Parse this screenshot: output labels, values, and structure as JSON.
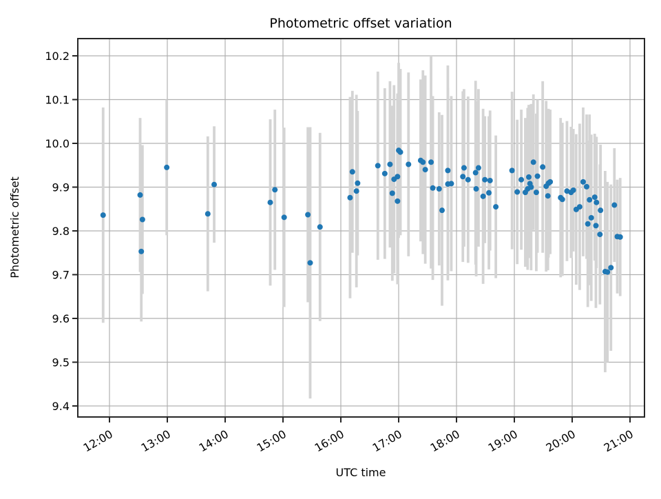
{
  "title": "Photometric offset variation",
  "chart_data": {
    "type": "scatter",
    "title": "Photometric offset variation",
    "xlabel": "UTC time",
    "ylabel": "Photometric offset",
    "grid": true,
    "legend": "none",
    "marker_color": "#1f77b4",
    "errorbar_color": "#d4d4d4",
    "grid_color": "#b0b0b0",
    "spine_color": "#262626",
    "ylim": [
      9.375,
      10.24
    ],
    "y_ticks": [
      "9.4",
      "9.5",
      "9.6",
      "9.7",
      "9.8",
      "9.9",
      "10.0",
      "10.1",
      "10.2"
    ],
    "x_ticks": [
      "12:00",
      "13:00",
      "14:00",
      "15:00",
      "16:00",
      "17:00",
      "18:00",
      "19:00",
      "20:00",
      "21:00"
    ],
    "x_tick_hours": [
      12,
      13,
      14,
      15,
      16,
      17,
      18,
      19,
      20,
      21
    ],
    "points": [
      {
        "time": "11:53",
        "hour": 11.89,
        "offset": 9.836,
        "err": 0.246
      },
      {
        "time": "12:32",
        "hour": 12.53,
        "offset": 9.882,
        "err": 0.176
      },
      {
        "time": "12:33",
        "hour": 12.55,
        "offset": 9.753,
        "err": 0.16
      },
      {
        "time": "12:34",
        "hour": 12.57,
        "offset": 9.826,
        "err": 0.17
      },
      {
        "time": "12:59",
        "hour": 12.99,
        "offset": 9.945,
        "err": 0.155
      },
      {
        "time": "13:42",
        "hour": 13.7,
        "offset": 9.839,
        "err": 0.177
      },
      {
        "time": "13:49",
        "hour": 13.81,
        "offset": 9.906,
        "err": 0.133
      },
      {
        "time": "14:47",
        "hour": 14.78,
        "offset": 9.865,
        "err": 0.19
      },
      {
        "time": "14:52",
        "hour": 14.86,
        "offset": 9.894,
        "err": 0.183
      },
      {
        "time": "15:01",
        "hour": 15.02,
        "offset": 9.831,
        "err": 0.205
      },
      {
        "time": "15:26",
        "hour": 15.43,
        "offset": 9.837,
        "err": 0.2
      },
      {
        "time": "15:28",
        "hour": 15.47,
        "offset": 9.727,
        "err": 0.31
      },
      {
        "time": "15:38",
        "hour": 15.64,
        "offset": 9.809,
        "err": 0.215
      },
      {
        "time": "16:10",
        "hour": 16.16,
        "offset": 9.876,
        "err": 0.23
      },
      {
        "time": "16:12",
        "hour": 16.2,
        "offset": 9.935,
        "err": 0.185
      },
      {
        "time": "16:16",
        "hour": 16.27,
        "offset": 9.891,
        "err": 0.22
      },
      {
        "time": "16:17",
        "hour": 16.29,
        "offset": 9.909,
        "err": 0.165
      },
      {
        "time": "16:38",
        "hour": 16.64,
        "offset": 9.949,
        "err": 0.215
      },
      {
        "time": "16:46",
        "hour": 16.76,
        "offset": 9.931,
        "err": 0.195
      },
      {
        "time": "16:51",
        "hour": 16.85,
        "offset": 9.952,
        "err": 0.19
      },
      {
        "time": "16:53",
        "hour": 16.89,
        "offset": 9.886,
        "err": 0.2
      },
      {
        "time": "16:55",
        "hour": 16.92,
        "offset": 9.918,
        "err": 0.215
      },
      {
        "time": "16:59",
        "hour": 16.98,
        "offset": 9.924,
        "err": 0.19
      },
      {
        "time": "16:59",
        "hour": 16.98,
        "offset": 9.868,
        "err": 0.19
      },
      {
        "time": "17:00",
        "hour": 17.0,
        "offset": 9.984,
        "err": 0.2
      },
      {
        "time": "17:02",
        "hour": 17.03,
        "offset": 9.98,
        "err": 0.19
      },
      {
        "time": "17:10",
        "hour": 17.17,
        "offset": 9.952,
        "err": 0.21
      },
      {
        "time": "17:23",
        "hour": 17.38,
        "offset": 9.961,
        "err": 0.185
      },
      {
        "time": "17:25",
        "hour": 17.42,
        "offset": 9.957,
        "err": 0.21
      },
      {
        "time": "17:28",
        "hour": 17.46,
        "offset": 9.94,
        "err": 0.215
      },
      {
        "time": "17:34",
        "hour": 17.56,
        "offset": 9.957,
        "err": 0.243
      },
      {
        "time": "17:35",
        "hour": 17.59,
        "offset": 9.898,
        "err": 0.21
      },
      {
        "time": "17:42",
        "hour": 17.7,
        "offset": 9.896,
        "err": 0.175
      },
      {
        "time": "17:45",
        "hour": 17.75,
        "offset": 9.847,
        "err": 0.218
      },
      {
        "time": "17:51",
        "hour": 17.85,
        "offset": 9.938,
        "err": 0.24
      },
      {
        "time": "17:51",
        "hour": 17.85,
        "offset": 9.907,
        "err": 0.22
      },
      {
        "time": "17:55",
        "hour": 17.91,
        "offset": 9.908,
        "err": 0.2
      },
      {
        "time": "18:07",
        "hour": 18.11,
        "offset": 9.924,
        "err": 0.195
      },
      {
        "time": "18:08",
        "hour": 18.13,
        "offset": 9.944,
        "err": 0.18
      },
      {
        "time": "18:12",
        "hour": 18.2,
        "offset": 9.917,
        "err": 0.19
      },
      {
        "time": "18:20",
        "hour": 18.33,
        "offset": 9.933,
        "err": 0.21
      },
      {
        "time": "18:20",
        "hour": 18.34,
        "offset": 9.896,
        "err": 0.2
      },
      {
        "time": "18:23",
        "hour": 18.38,
        "offset": 9.944,
        "err": 0.18
      },
      {
        "time": "18:28",
        "hour": 18.46,
        "offset": 9.879,
        "err": 0.2
      },
      {
        "time": "18:29",
        "hour": 18.49,
        "offset": 9.917,
        "err": 0.145
      },
      {
        "time": "18:34",
        "hour": 18.56,
        "offset": 9.887,
        "err": 0.175
      },
      {
        "time": "18:35",
        "hour": 18.58,
        "offset": 9.915,
        "err": 0.16
      },
      {
        "time": "18:41",
        "hour": 18.68,
        "offset": 9.855,
        "err": 0.163
      },
      {
        "time": "18:58",
        "hour": 18.96,
        "offset": 9.938,
        "err": 0.18
      },
      {
        "time": "19:03",
        "hour": 19.05,
        "offset": 9.889,
        "err": 0.165
      },
      {
        "time": "19:07",
        "hour": 19.12,
        "offset": 9.917,
        "err": 0.16
      },
      {
        "time": "19:11",
        "hour": 19.19,
        "offset": 9.888,
        "err": 0.17
      },
      {
        "time": "19:14",
        "hour": 19.23,
        "offset": 9.896,
        "err": 0.185
      },
      {
        "time": "19:15",
        "hour": 19.25,
        "offset": 9.923,
        "err": 0.165
      },
      {
        "time": "19:16",
        "hour": 19.27,
        "offset": 9.908,
        "err": 0.17
      },
      {
        "time": "19:17",
        "hour": 19.29,
        "offset": 9.9,
        "err": 0.19
      },
      {
        "time": "19:20",
        "hour": 19.33,
        "offset": 9.957,
        "err": 0.155
      },
      {
        "time": "19:23",
        "hour": 19.38,
        "offset": 9.888,
        "err": 0.18
      },
      {
        "time": "19:24",
        "hour": 19.4,
        "offset": 9.925,
        "err": 0.175
      },
      {
        "time": "19:29",
        "hour": 19.49,
        "offset": 9.946,
        "err": 0.196
      },
      {
        "time": "19:33",
        "hour": 19.55,
        "offset": 9.902,
        "err": 0.195
      },
      {
        "time": "19:35",
        "hour": 19.58,
        "offset": 9.88,
        "err": 0.17
      },
      {
        "time": "19:35",
        "hour": 19.59,
        "offset": 9.909,
        "err": 0.17
      },
      {
        "time": "19:37",
        "hour": 19.62,
        "offset": 9.912,
        "err": 0.165
      },
      {
        "time": "19:48",
        "hour": 19.8,
        "offset": 9.876,
        "err": 0.182
      },
      {
        "time": "19:50",
        "hour": 19.83,
        "offset": 9.872,
        "err": 0.175
      },
      {
        "time": "19:55",
        "hour": 19.91,
        "offset": 9.891,
        "err": 0.16
      },
      {
        "time": "19:59",
        "hour": 19.98,
        "offset": 9.888,
        "err": 0.15
      },
      {
        "time": "20:01",
        "hour": 20.02,
        "offset": 9.893,
        "err": 0.14
      },
      {
        "time": "20:04",
        "hour": 20.07,
        "offset": 9.849,
        "err": 0.172
      },
      {
        "time": "20:08",
        "hour": 20.13,
        "offset": 9.855,
        "err": 0.19
      },
      {
        "time": "20:11",
        "hour": 20.19,
        "offset": 9.912,
        "err": 0.17
      },
      {
        "time": "20:15",
        "hour": 20.25,
        "offset": 9.901,
        "err": 0.165
      },
      {
        "time": "20:16",
        "hour": 20.27,
        "offset": 9.816,
        "err": 0.19
      },
      {
        "time": "20:18",
        "hour": 20.3,
        "offset": 9.871,
        "err": 0.195
      },
      {
        "time": "20:20",
        "hour": 20.33,
        "offset": 9.83,
        "err": 0.19
      },
      {
        "time": "20:23",
        "hour": 20.39,
        "offset": 9.877,
        "err": 0.145
      },
      {
        "time": "20:25",
        "hour": 20.41,
        "offset": 9.812,
        "err": 0.188
      },
      {
        "time": "20:25",
        "hour": 20.42,
        "offset": 9.865,
        "err": 0.15
      },
      {
        "time": "20:29",
        "hour": 20.48,
        "offset": 9.792,
        "err": 0.16
      },
      {
        "time": "20:29",
        "hour": 20.49,
        "offset": 9.847,
        "err": 0.15
      },
      {
        "time": "20:34",
        "hour": 20.57,
        "offset": 9.707,
        "err": 0.23
      },
      {
        "time": "20:37",
        "hour": 20.61,
        "offset": 9.706,
        "err": 0.206
      },
      {
        "time": "20:40",
        "hour": 20.67,
        "offset": 9.716,
        "err": 0.19
      },
      {
        "time": "20:44",
        "hour": 20.73,
        "offset": 9.859,
        "err": 0.13
      },
      {
        "time": "20:47",
        "hour": 20.78,
        "offset": 9.787,
        "err": 0.13
      },
      {
        "time": "20:50",
        "hour": 20.83,
        "offset": 9.786,
        "err": 0.135
      }
    ]
  }
}
